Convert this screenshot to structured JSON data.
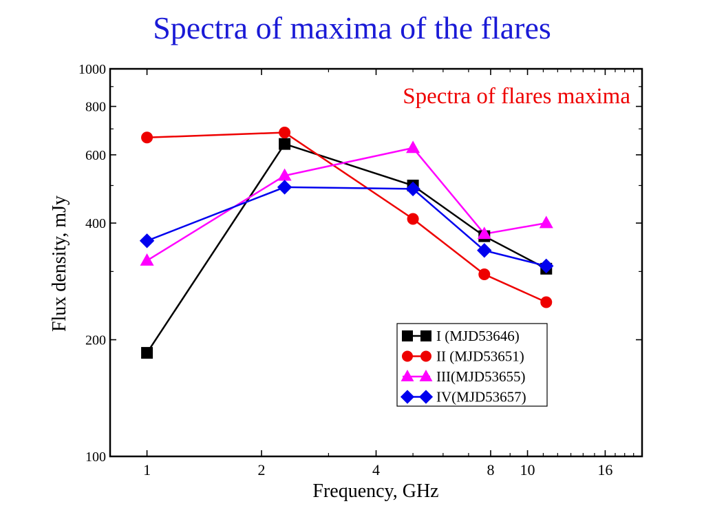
{
  "slide": {
    "title": "Spectra of maxima of the flares"
  },
  "chart_data": {
    "type": "line",
    "title": "Spectra of  flares maxima",
    "xlabel": "Frequency, GHz",
    "ylabel": "Flux density, mJy",
    "xscale": "log",
    "yscale": "log",
    "xlim": [
      0.8,
      20
    ],
    "ylim": [
      100,
      1000
    ],
    "xticks": [
      1,
      2,
      4,
      8,
      10,
      16
    ],
    "xtick_labels": [
      "1",
      "2",
      "4",
      "8",
      "10",
      "16"
    ],
    "yticks": [
      100,
      200,
      400,
      600,
      800,
      1000
    ],
    "ytick_labels": [
      "100",
      "200",
      "400",
      "600",
      "800",
      "1000"
    ],
    "legend_position": "bottom-right",
    "series": [
      {
        "name": "I (MJD53646)",
        "color": "#000000",
        "marker": "square",
        "x": [
          1.0,
          2.3,
          5.0,
          7.7,
          11.2
        ],
        "y": [
          185,
          640,
          500,
          370,
          305
        ]
      },
      {
        "name": "II (MJD53651)",
        "color": "#ee0000",
        "marker": "circle",
        "x": [
          1.0,
          2.3,
          5.0,
          7.7,
          11.2
        ],
        "y": [
          665,
          685,
          410,
          295,
          250
        ]
      },
      {
        "name": "III(MJD53655)",
        "color": "#ff00ff",
        "marker": "triangle",
        "x": [
          1.0,
          2.3,
          5.0,
          7.7,
          11.2
        ],
        "y": [
          320,
          530,
          625,
          375,
          400
        ]
      },
      {
        "name": "IV(MJD53657)",
        "color": "#0000ee",
        "marker": "diamond",
        "x": [
          1.0,
          2.3,
          5.0,
          7.7,
          11.2
        ],
        "y": [
          360,
          495,
          490,
          340,
          310
        ]
      }
    ]
  }
}
